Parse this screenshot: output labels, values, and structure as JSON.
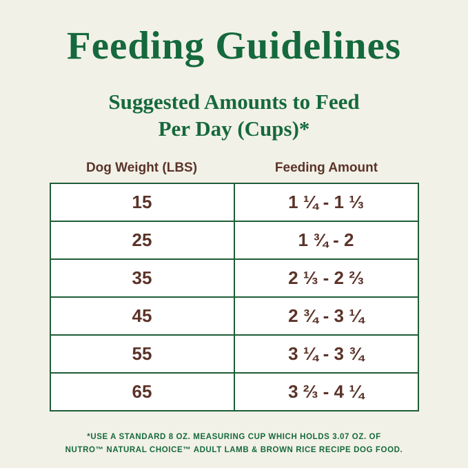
{
  "header": {
    "title": "Feeding Guidelines",
    "subtitle_line1": "Suggested Amounts to Feed",
    "subtitle_line2": "Per Day (Cups)*"
  },
  "table": {
    "headers": [
      "Dog Weight (LBS)",
      "Feeding Amount"
    ],
    "rows": [
      {
        "weight": "15",
        "amount": "1 ¼ - 1 ⅓"
      },
      {
        "weight": "25",
        "amount": "1 ¾ - 2"
      },
      {
        "weight": "35",
        "amount": "2 ⅓ - 2 ⅔"
      },
      {
        "weight": "45",
        "amount": "2 ¾ - 3 ¼"
      },
      {
        "weight": "55",
        "amount": "3 ¼ - 3 ¾"
      },
      {
        "weight": "65",
        "amount": "3 ⅔ - 4 ¼"
      }
    ]
  },
  "footnote": {
    "line1": "*USE A STANDARD 8 OZ. MEASURING CUP WHICH HOLDS 3.07 OZ. OF",
    "line2": "NUTRO™ NATURAL CHOICE™ ADULT LAMB & BROWN RICE RECIPE DOG FOOD."
  },
  "colors": {
    "background": "#f2f1e7",
    "green": "#15693c",
    "brown": "#5b3329",
    "table_border": "#1d5c36",
    "cell_background": "#ffffff"
  }
}
